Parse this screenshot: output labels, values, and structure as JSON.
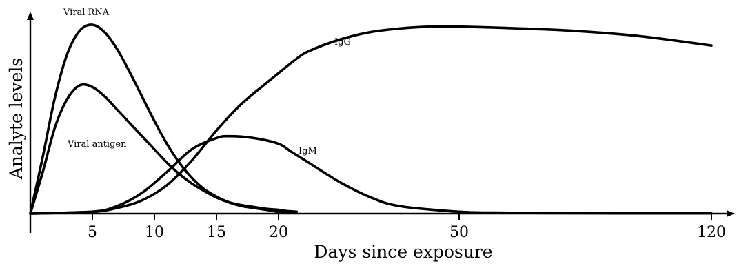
{
  "chart_data": {
    "type": "line",
    "xlabel": "Days since exposure",
    "ylabel": "Analyte levels",
    "x_ticks": [
      "5",
      "10",
      "15",
      "20",
      "50",
      "120"
    ],
    "x_scale": "piecewise",
    "grid": false,
    "legend": "none",
    "series": [
      {
        "name": "Viral RNA",
        "x": [
          0,
          1,
          2,
          3,
          4,
          5,
          6,
          7,
          8,
          9,
          10,
          11,
          12,
          13,
          14,
          15,
          16,
          17,
          18,
          19,
          20,
          21,
          22,
          23
        ],
        "y": [
          0,
          0.3,
          0.62,
          0.85,
          0.97,
          1.0,
          0.96,
          0.87,
          0.75,
          0.62,
          0.49,
          0.37,
          0.27,
          0.19,
          0.13,
          0.09,
          0.06,
          0.04,
          0.03,
          0.02,
          0.01,
          0.01,
          0.01,
          0.01
        ]
      },
      {
        "name": "Viral antigen",
        "x": [
          0,
          1,
          2,
          3,
          4,
          5,
          6,
          7,
          8,
          9,
          10,
          11,
          12,
          13,
          14,
          15,
          16,
          17,
          18,
          19,
          20,
          21,
          22,
          23
        ],
        "y": [
          0,
          0.22,
          0.46,
          0.61,
          0.68,
          0.67,
          0.62,
          0.55,
          0.48,
          0.41,
          0.34,
          0.27,
          0.21,
          0.16,
          0.12,
          0.085,
          0.06,
          0.045,
          0.035,
          0.025,
          0.02,
          0.015,
          0.012,
          0.01
        ]
      },
      {
        "name": "IgM",
        "x": [
          0,
          5,
          7,
          9,
          11,
          13,
          15,
          16,
          18,
          20,
          22,
          25,
          30,
          35,
          40,
          50,
          60,
          80,
          100,
          120
        ],
        "y": [
          0,
          0.01,
          0.04,
          0.11,
          0.22,
          0.34,
          0.4,
          0.41,
          0.4,
          0.37,
          0.33,
          0.27,
          0.17,
          0.09,
          0.04,
          0.01,
          0.005,
          0.002,
          0.001,
          0.001
        ]
      },
      {
        "name": "IgG",
        "x": [
          0,
          5,
          7,
          9,
          11,
          13,
          15,
          17,
          19,
          21,
          23,
          25,
          30,
          35,
          40,
          45,
          50,
          60,
          80,
          100,
          120
        ],
        "y": [
          0,
          0.01,
          0.03,
          0.07,
          0.15,
          0.28,
          0.44,
          0.58,
          0.69,
          0.77,
          0.82,
          0.86,
          0.92,
          0.96,
          0.98,
          0.99,
          0.99,
          0.985,
          0.97,
          0.94,
          0.89
        ]
      }
    ]
  }
}
